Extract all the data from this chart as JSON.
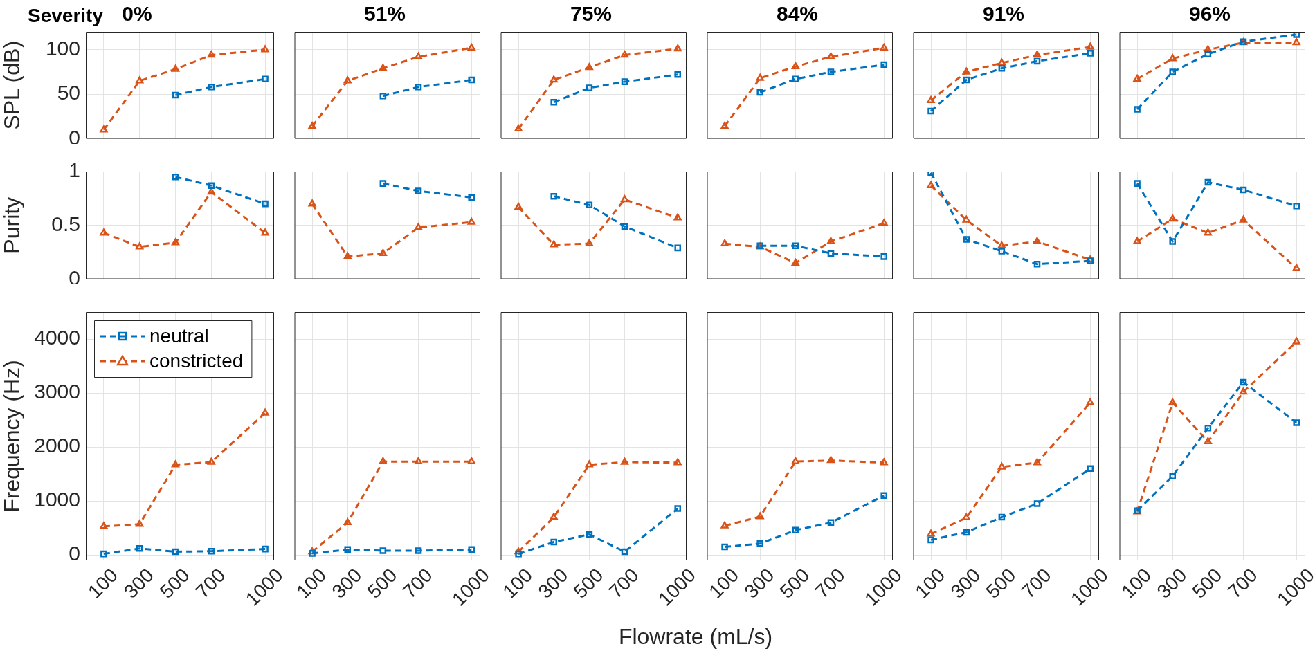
{
  "chart_data": [
    {
      "type": "line",
      "title": "0%",
      "ylabel": "SPL (dB)",
      "annotations": [
        "Severity"
      ],
      "x": [
        100,
        300,
        500,
        700,
        1000
      ],
      "xlim": [
        0,
        1050
      ],
      "xticks": [
        100,
        300,
        500,
        700,
        1000
      ],
      "ylim": [
        0,
        120
      ],
      "yticks": [
        0,
        50,
        100
      ],
      "grid": true,
      "line_style": "dashed",
      "tick_labels": "y",
      "series": [
        {
          "color": "#0072bd",
          "marker": "square",
          "values": [
            null,
            null,
            49,
            58,
            67
          ]
        },
        {
          "color": "#d95319",
          "marker": "triangle",
          "values": [
            10,
            65,
            78,
            94,
            100
          ]
        }
      ]
    },
    {
      "type": "line",
      "title": "51%",
      "x": [
        100,
        300,
        500,
        700,
        1000
      ],
      "xlim": [
        0,
        1050
      ],
      "xticks": [
        100,
        300,
        500,
        700,
        1000
      ],
      "ylim": [
        0,
        120
      ],
      "yticks": [
        0,
        50,
        100
      ],
      "grid": true,
      "line_style": "dashed",
      "tick_labels": false,
      "series": [
        {
          "color": "#0072bd",
          "marker": "square",
          "values": [
            null,
            null,
            48,
            58,
            66
          ]
        },
        {
          "color": "#d95319",
          "marker": "triangle",
          "values": [
            14,
            65,
            79,
            92,
            102
          ]
        }
      ]
    },
    {
      "type": "line",
      "title": "75%",
      "x": [
        100,
        300,
        500,
        700,
        1000
      ],
      "xlim": [
        0,
        1050
      ],
      "xticks": [
        100,
        300,
        500,
        700,
        1000
      ],
      "ylim": [
        0,
        120
      ],
      "yticks": [
        0,
        50,
        100
      ],
      "grid": true,
      "line_style": "dashed",
      "tick_labels": false,
      "series": [
        {
          "color": "#0072bd",
          "marker": "square",
          "values": [
            null,
            41,
            57,
            64,
            72
          ]
        },
        {
          "color": "#d95319",
          "marker": "triangle",
          "values": [
            11,
            66,
            80,
            94,
            101
          ]
        }
      ]
    },
    {
      "type": "line",
      "title": "84%",
      "x": [
        100,
        300,
        500,
        700,
        1000
      ],
      "xlim": [
        0,
        1050
      ],
      "xticks": [
        100,
        300,
        500,
        700,
        1000
      ],
      "ylim": [
        0,
        120
      ],
      "yticks": [
        0,
        50,
        100
      ],
      "grid": true,
      "line_style": "dashed",
      "tick_labels": false,
      "series": [
        {
          "color": "#0072bd",
          "marker": "square",
          "values": [
            null,
            52,
            67,
            75,
            83
          ]
        },
        {
          "color": "#d95319",
          "marker": "triangle",
          "values": [
            14,
            68,
            81,
            92,
            102
          ]
        }
      ]
    },
    {
      "type": "line",
      "title": "91%",
      "x": [
        100,
        300,
        500,
        700,
        1000
      ],
      "xlim": [
        0,
        1050
      ],
      "xticks": [
        100,
        300,
        500,
        700,
        1000
      ],
      "ylim": [
        0,
        120
      ],
      "yticks": [
        0,
        50,
        100
      ],
      "grid": true,
      "line_style": "dashed",
      "tick_labels": false,
      "series": [
        {
          "color": "#0072bd",
          "marker": "square",
          "values": [
            31,
            66,
            79,
            87,
            96
          ]
        },
        {
          "color": "#d95319",
          "marker": "triangle",
          "values": [
            43,
            75,
            85,
            94,
            103
          ]
        }
      ]
    },
    {
      "type": "line",
      "title": "96%",
      "x": [
        100,
        300,
        500,
        700,
        1000
      ],
      "xlim": [
        0,
        1050
      ],
      "xticks": [
        100,
        300,
        500,
        700,
        1000
      ],
      "ylim": [
        0,
        120
      ],
      "yticks": [
        0,
        50,
        100
      ],
      "grid": true,
      "line_style": "dashed",
      "tick_labels": false,
      "series": [
        {
          "color": "#0072bd",
          "marker": "square",
          "values": [
            33,
            75,
            95,
            109,
            117
          ]
        },
        {
          "color": "#d95319",
          "marker": "triangle",
          "values": [
            67,
            90,
            100,
            108,
            108
          ]
        }
      ]
    },
    {
      "type": "line",
      "ylabel": "Purity",
      "x": [
        100,
        300,
        500,
        700,
        1000
      ],
      "xlim": [
        0,
        1050
      ],
      "xticks": [
        100,
        300,
        500,
        700,
        1000
      ],
      "ylim": [
        0,
        1
      ],
      "yticks": [
        0,
        0.5,
        1
      ],
      "grid": true,
      "line_style": "dashed",
      "tick_labels": "y",
      "series": [
        {
          "color": "#0072bd",
          "marker": "square",
          "values": [
            null,
            null,
            0.95,
            0.87,
            0.7
          ]
        },
        {
          "color": "#d95319",
          "marker": "triangle",
          "values": [
            0.43,
            0.3,
            0.34,
            0.81,
            0.43
          ]
        }
      ]
    },
    {
      "type": "line",
      "x": [
        100,
        300,
        500,
        700,
        1000
      ],
      "xlim": [
        0,
        1050
      ],
      "xticks": [
        100,
        300,
        500,
        700,
        1000
      ],
      "ylim": [
        0,
        1
      ],
      "yticks": [
        0,
        0.5,
        1
      ],
      "grid": true,
      "line_style": "dashed",
      "tick_labels": false,
      "series": [
        {
          "color": "#0072bd",
          "marker": "square",
          "values": [
            null,
            null,
            0.89,
            0.82,
            0.76
          ]
        },
        {
          "color": "#d95319",
          "marker": "triangle",
          "values": [
            0.7,
            0.21,
            0.24,
            0.48,
            0.53
          ]
        }
      ]
    },
    {
      "type": "line",
      "x": [
        100,
        300,
        500,
        700,
        1000
      ],
      "xlim": [
        0,
        1050
      ],
      "xticks": [
        100,
        300,
        500,
        700,
        1000
      ],
      "ylim": [
        0,
        1
      ],
      "yticks": [
        0,
        0.5,
        1
      ],
      "grid": true,
      "line_style": "dashed",
      "tick_labels": false,
      "series": [
        {
          "color": "#0072bd",
          "marker": "square",
          "values": [
            null,
            0.77,
            0.69,
            0.49,
            0.29
          ]
        },
        {
          "color": "#d95319",
          "marker": "triangle",
          "values": [
            0.67,
            0.32,
            0.33,
            0.74,
            0.57
          ]
        }
      ]
    },
    {
      "type": "line",
      "x": [
        100,
        300,
        500,
        700,
        1000
      ],
      "xlim": [
        0,
        1050
      ],
      "xticks": [
        100,
        300,
        500,
        700,
        1000
      ],
      "ylim": [
        0,
        1
      ],
      "yticks": [
        0,
        0.5,
        1
      ],
      "grid": true,
      "line_style": "dashed",
      "tick_labels": false,
      "series": [
        {
          "color": "#0072bd",
          "marker": "square",
          "values": [
            null,
            0.31,
            0.31,
            0.24,
            0.21
          ]
        },
        {
          "color": "#d95319",
          "marker": "triangle",
          "values": [
            0.33,
            0.3,
            0.15,
            0.35,
            0.52
          ]
        }
      ]
    },
    {
      "type": "line",
      "x": [
        100,
        300,
        500,
        700,
        1000
      ],
      "xlim": [
        0,
        1050
      ],
      "xticks": [
        100,
        300,
        500,
        700,
        1000
      ],
      "ylim": [
        0,
        1
      ],
      "yticks": [
        0,
        0.5,
        1
      ],
      "grid": true,
      "line_style": "dashed",
      "tick_labels": false,
      "series": [
        {
          "color": "#0072bd",
          "marker": "square",
          "values": [
            0.99,
            0.37,
            0.26,
            0.14,
            0.17
          ]
        },
        {
          "color": "#d95319",
          "marker": "triangle",
          "values": [
            0.87,
            0.55,
            0.31,
            0.35,
            0.18
          ]
        }
      ]
    },
    {
      "type": "line",
      "x": [
        100,
        300,
        500,
        700,
        1000
      ],
      "xlim": [
        0,
        1050
      ],
      "xticks": [
        100,
        300,
        500,
        700,
        1000
      ],
      "ylim": [
        0,
        1
      ],
      "yticks": [
        0,
        0.5,
        1
      ],
      "grid": true,
      "line_style": "dashed",
      "tick_labels": false,
      "series": [
        {
          "color": "#0072bd",
          "marker": "square",
          "values": [
            0.89,
            0.35,
            0.9,
            0.83,
            0.68
          ]
        },
        {
          "color": "#d95319",
          "marker": "triangle",
          "values": [
            0.35,
            0.56,
            0.43,
            0.55,
            0.1
          ]
        }
      ]
    },
    {
      "type": "line",
      "ylabel": "Frequency (Hz)",
      "legend": "top left",
      "x": [
        100,
        300,
        500,
        700,
        1000
      ],
      "xlim": [
        0,
        1050
      ],
      "xticks": [
        100,
        300,
        500,
        700,
        1000
      ],
      "ylim": [
        -100,
        4500
      ],
      "yticks": [
        0,
        1000,
        2000,
        3000,
        4000
      ],
      "grid": true,
      "line_style": "dashed",
      "series": [
        {
          "name": "neutral",
          "color": "#0072bd",
          "marker": "square",
          "values": [
            20,
            120,
            60,
            70,
            110
          ]
        },
        {
          "name": "constricted",
          "color": "#d95319",
          "marker": "triangle",
          "values": [
            530,
            570,
            1670,
            1720,
            2630
          ]
        }
      ]
    },
    {
      "type": "line",
      "x": [
        100,
        300,
        500,
        700,
        1000
      ],
      "xlim": [
        0,
        1050
      ],
      "xticks": [
        100,
        300,
        500,
        700,
        1000
      ],
      "ylim": [
        -100,
        4500
      ],
      "yticks": [
        0,
        1000,
        2000,
        3000,
        4000
      ],
      "grid": true,
      "line_style": "dashed",
      "tick_labels": "x",
      "series": [
        {
          "color": "#0072bd",
          "marker": "square",
          "values": [
            30,
            100,
            80,
            80,
            100
          ]
        },
        {
          "color": "#d95319",
          "marker": "triangle",
          "values": [
            60,
            600,
            1730,
            1730,
            1730
          ]
        }
      ]
    },
    {
      "type": "line",
      "xlabel": "Flowrate (mL/s)",
      "x": [
        100,
        300,
        500,
        700,
        1000
      ],
      "xlim": [
        0,
        1050
      ],
      "xticks": [
        100,
        300,
        500,
        700,
        1000
      ],
      "ylim": [
        -100,
        4500
      ],
      "yticks": [
        0,
        1000,
        2000,
        3000,
        4000
      ],
      "grid": true,
      "line_style": "dashed",
      "tick_labels": "x",
      "series": [
        {
          "color": "#0072bd",
          "marker": "square",
          "values": [
            20,
            240,
            380,
            60,
            860
          ]
        },
        {
          "color": "#d95319",
          "marker": "triangle",
          "values": [
            60,
            700,
            1670,
            1720,
            1710
          ]
        }
      ]
    },
    {
      "type": "line",
      "x": [
        100,
        300,
        500,
        700,
        1000
      ],
      "xlim": [
        0,
        1050
      ],
      "xticks": [
        100,
        300,
        500,
        700,
        1000
      ],
      "ylim": [
        -100,
        4500
      ],
      "yticks": [
        0,
        1000,
        2000,
        3000,
        4000
      ],
      "grid": true,
      "line_style": "dashed",
      "tick_labels": "x",
      "series": [
        {
          "color": "#0072bd",
          "marker": "square",
          "values": [
            150,
            210,
            460,
            600,
            1100
          ]
        },
        {
          "color": "#d95319",
          "marker": "triangle",
          "values": [
            540,
            710,
            1730,
            1750,
            1710
          ]
        }
      ]
    },
    {
      "type": "line",
      "x": [
        100,
        300,
        500,
        700,
        1000
      ],
      "xlim": [
        0,
        1050
      ],
      "xticks": [
        100,
        300,
        500,
        700,
        1000
      ],
      "ylim": [
        -100,
        4500
      ],
      "yticks": [
        0,
        1000,
        2000,
        3000,
        4000
      ],
      "grid": true,
      "line_style": "dashed",
      "tick_labels": "x",
      "series": [
        {
          "color": "#0072bd",
          "marker": "square",
          "values": [
            280,
            420,
            700,
            950,
            1600
          ]
        },
        {
          "color": "#d95319",
          "marker": "triangle",
          "values": [
            390,
            690,
            1630,
            1710,
            2820
          ]
        }
      ]
    },
    {
      "type": "line",
      "x": [
        100,
        300,
        500,
        700,
        1000
      ],
      "xlim": [
        0,
        1050
      ],
      "xticks": [
        100,
        300,
        500,
        700,
        1000
      ],
      "ylim": [
        -100,
        4500
      ],
      "yticks": [
        0,
        1000,
        2000,
        3000,
        4000
      ],
      "grid": true,
      "line_style": "dashed",
      "tick_labels": "x",
      "series": [
        {
          "color": "#0072bd",
          "marker": "square",
          "values": [
            820,
            1460,
            2350,
            3200,
            2450
          ]
        },
        {
          "color": "#d95319",
          "marker": "triangle",
          "values": [
            800,
            2820,
            2100,
            3020,
            3950
          ]
        }
      ]
    }
  ]
}
